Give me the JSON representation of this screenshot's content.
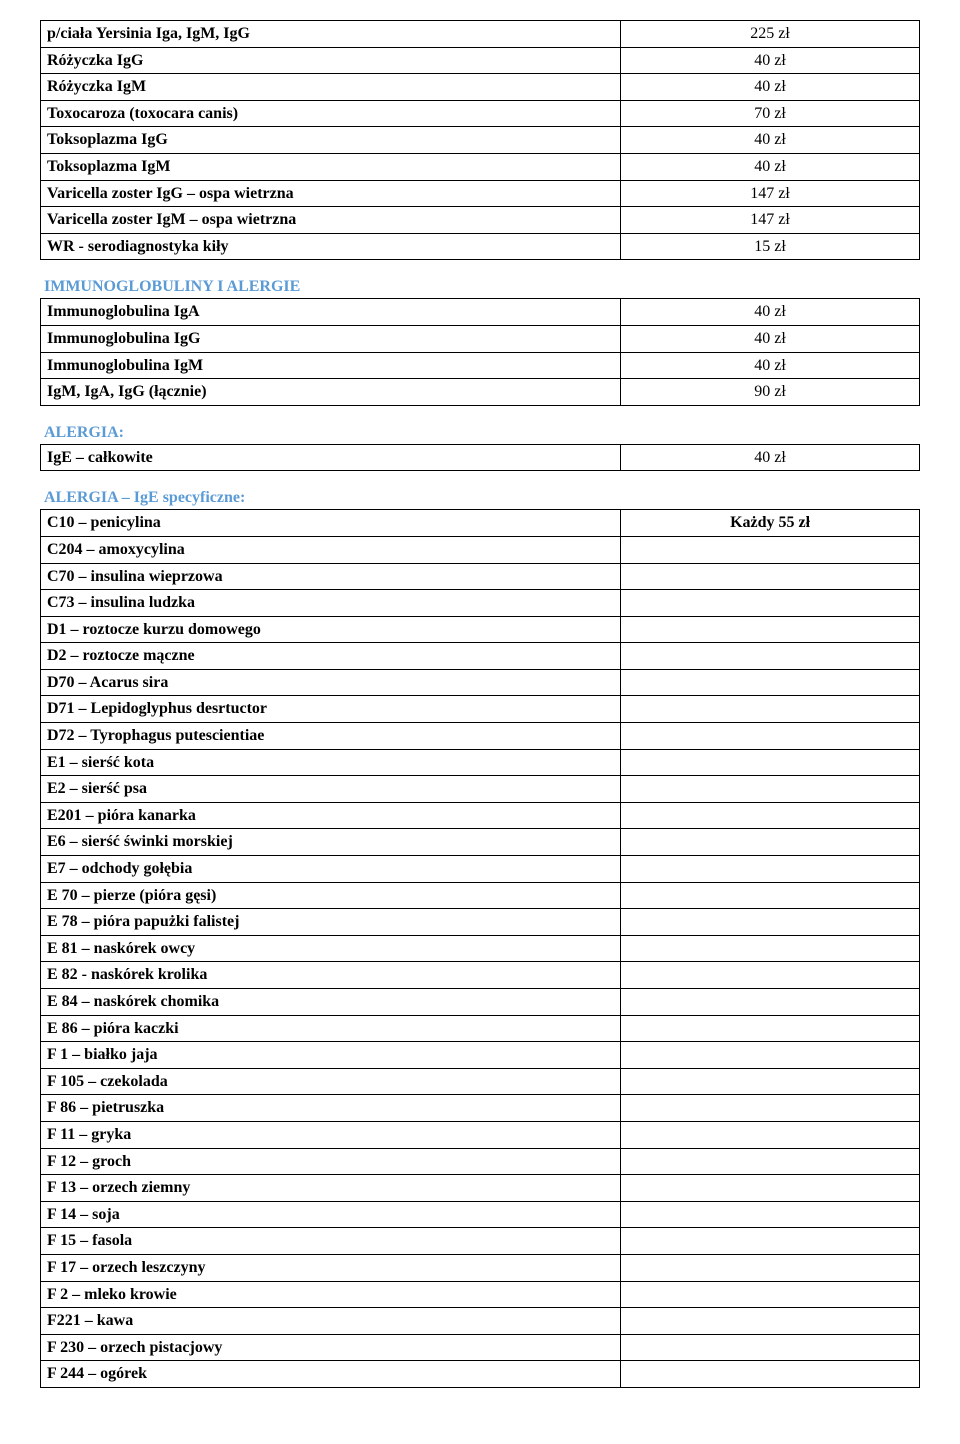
{
  "section1": {
    "rows": [
      {
        "name": "p/ciała Yersinia Iga, IgM, IgG",
        "price": "225 zł"
      },
      {
        "name": "Różyczka IgG",
        "price": "40 zł"
      },
      {
        "name": "Różyczka IgM",
        "price": "40 zł"
      },
      {
        "name": "Toxocaroza (toxocara canis)",
        "price": "70 zł"
      },
      {
        "name": "Toksoplazma IgG",
        "price": "40 zł"
      },
      {
        "name": "Toksoplazma IgM",
        "price": "40 zł"
      },
      {
        "name": "Varicella  zoster  IgG – ospa wietrzna",
        "price": "147 zł"
      },
      {
        "name": "Varicella  zoster  IgM – ospa wietrzna",
        "price": "147 zł"
      },
      {
        "name": "WR - serodiagnostyka kiły",
        "price": "15 zł"
      }
    ]
  },
  "section2": {
    "title": "IMMUNOGLOBULINY I ALERGIE",
    "rows": [
      {
        "name": "Immunoglobulina  IgA",
        "price": "40 zł"
      },
      {
        "name": "Immunoglobulina  IgG",
        "price": "40 zł"
      },
      {
        "name": "Immunoglobulina  IgM",
        "price": "40 zł"
      },
      {
        "name": "IgM, IgA, IgG (łącznie)",
        "price": "90 zł"
      }
    ]
  },
  "section3": {
    "title": "ALERGIA:",
    "rows": [
      {
        "name": "IgE – całkowite",
        "price": "40 zł"
      }
    ]
  },
  "section4": {
    "title": "ALERGIA – IgE specyficzne:",
    "rows": [
      {
        "name": "C10 – penicylina",
        "price": "Każdy 55 zł",
        "price_bold": true
      },
      {
        "name": "C204 – amoxycylina",
        "price": ""
      },
      {
        "name": "C70 – insulina wieprzowa",
        "price": ""
      },
      {
        "name": "C73 – insulina ludzka",
        "price": ""
      },
      {
        "name": "D1 – roztocze kurzu domowego",
        "price": ""
      },
      {
        "name": "D2 – roztocze mączne",
        "price": ""
      },
      {
        "name": "D70 – Acarus sira",
        "price": ""
      },
      {
        "name": "D71 – Lepidoglyphus desrtuctor",
        "price": ""
      },
      {
        "name": "D72 – Tyrophagus putescientiae",
        "price": ""
      },
      {
        "name": "E1 – sierść kota",
        "price": ""
      },
      {
        "name": "E2 – sierść psa",
        "price": ""
      },
      {
        "name": "E201 – pióra kanarka",
        "price": ""
      },
      {
        "name": "E6 – sierść świnki morskiej",
        "price": ""
      },
      {
        "name": "E7 – odchody gołębia",
        "price": ""
      },
      {
        "name": "E 70 – pierze (pióra gęsi)",
        "price": ""
      },
      {
        "name": "E 78 – pióra papużki falistej",
        "price": ""
      },
      {
        "name": "E 81 – naskórek owcy",
        "price": ""
      },
      {
        "name": "E 82 -  naskórek krolika",
        "price": ""
      },
      {
        "name": "E 84 – naskórek chomika",
        "price": ""
      },
      {
        "name": "E 86 – pióra kaczki",
        "price": ""
      },
      {
        "name": "F 1 – białko jaja",
        "price": ""
      },
      {
        "name": "F 105 – czekolada",
        "price": ""
      },
      {
        "name": "F 86 – pietruszka",
        "price": ""
      },
      {
        "name": "F 11 – gryka",
        "price": ""
      },
      {
        "name": "F 12 – groch",
        "price": ""
      },
      {
        "name": "F 13 – orzech ziemny",
        "price": ""
      },
      {
        "name": "F 14 – soja",
        "price": ""
      },
      {
        "name": "F 15 – fasola",
        "price": ""
      },
      {
        "name": "F 17 – orzech leszczyny",
        "price": ""
      },
      {
        "name": "F 2 – mleko krowie",
        "price": ""
      },
      {
        "name": "F221 – kawa",
        "price": ""
      },
      {
        "name": "F 230 – orzech pistacjowy",
        "price": ""
      },
      {
        "name": "F 244 – ogórek",
        "price": ""
      }
    ]
  }
}
